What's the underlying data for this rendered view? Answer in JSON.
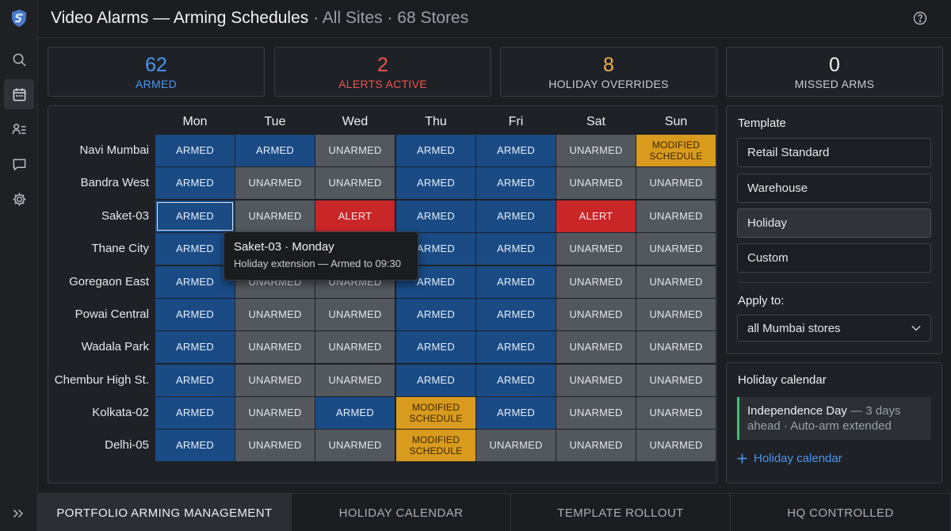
{
  "header": {
    "title": "Video Alarms — Arming Schedules",
    "subtitle": " · All Sites · 68 Stores"
  },
  "icons": {
    "logo": "shield-logo-icon",
    "nav": [
      "search-icon",
      "calendar-icon",
      "users-list-icon",
      "chat-icon",
      "gear-icon"
    ],
    "help": "help-circle-icon",
    "expand": "double-chevron-right-icon"
  },
  "stats": [
    {
      "value": "62",
      "label": "ARMED",
      "color": "#4d96ef"
    },
    {
      "value": "2",
      "label": "ALERTS ACTIVE",
      "color": "#ef5350"
    },
    {
      "value": "8",
      "label": "HOLIDAY OVERRIDES",
      "color": "#f0b34a",
      "label_color": "#c9cdd2"
    },
    {
      "value": "0",
      "label": "MISSED ARMS",
      "color": "#eef0f2",
      "label_color": "#c9cdd2"
    }
  ],
  "schedule": {
    "days": [
      "Mon",
      "Tue",
      "Wed",
      "Thu",
      "Fri",
      "Sat",
      "Sun"
    ],
    "state_labels": {
      "A": "ARMED",
      "U": "UNARMED",
      "L": "ALERT",
      "M": "MODIFIED SCHEDULE"
    },
    "stores": [
      {
        "name": "Navi Mumbai",
        "states": [
          "A",
          "A",
          "U",
          "A",
          "A",
          "U",
          "M"
        ]
      },
      {
        "name": "Bandra West",
        "states": [
          "A",
          "U",
          "U",
          "A",
          "A",
          "U",
          "U"
        ]
      },
      {
        "name": "Saket-03",
        "states": [
          "A",
          "U",
          "L",
          "A",
          "A",
          "L",
          "U"
        ]
      },
      {
        "name": "Thane City",
        "states": [
          "A",
          "U",
          "U",
          "A",
          "A",
          "U",
          "U"
        ]
      },
      {
        "name": "Goregaon East",
        "states": [
          "A",
          "U",
          "U",
          "A",
          "A",
          "U",
          "U"
        ]
      },
      {
        "name": "Powai Central",
        "states": [
          "A",
          "U",
          "U",
          "A",
          "A",
          "U",
          "U"
        ]
      },
      {
        "name": "Wadala Park",
        "states": [
          "A",
          "U",
          "U",
          "A",
          "A",
          "U",
          "U"
        ]
      },
      {
        "name": "Chembur High St.",
        "states": [
          "A",
          "U",
          "U",
          "A",
          "A",
          "U",
          "U"
        ]
      },
      {
        "name": "Kolkata-02",
        "states": [
          "A",
          "U",
          "A",
          "M",
          "A",
          "U",
          "U"
        ]
      },
      {
        "name": "Delhi-05",
        "states": [
          "A",
          "U",
          "U",
          "M",
          "U",
          "U",
          "U"
        ]
      }
    ],
    "selected": {
      "row": 2,
      "col": 0
    },
    "tooltip": {
      "title": "Saket-03 · Monday",
      "body": "Holiday extension — Armed to 09:30"
    }
  },
  "template_panel": {
    "title": "Template",
    "options": [
      "Retail Standard",
      "Warehouse",
      "Holiday",
      "Custom"
    ],
    "selected_index": 2,
    "apply_label": "Apply to:",
    "apply_value": "all Mumbai stores"
  },
  "holiday_panel": {
    "title": "Holiday calendar",
    "event_name": "Independence Day",
    "event_detail": " — 3 days ahead · Auto-arm extended",
    "add_link": "Holiday calendar",
    "accent": "#3fbf6e"
  },
  "tabs": [
    {
      "label": "PORTFOLIO ARMING MANAGEMENT",
      "active": true
    },
    {
      "label": "HOLIDAY CALENDAR",
      "active": false
    },
    {
      "label": "TEMPLATE ROLLOUT",
      "active": false
    },
    {
      "label": "HQ CONTROLLED",
      "active": false
    }
  ]
}
